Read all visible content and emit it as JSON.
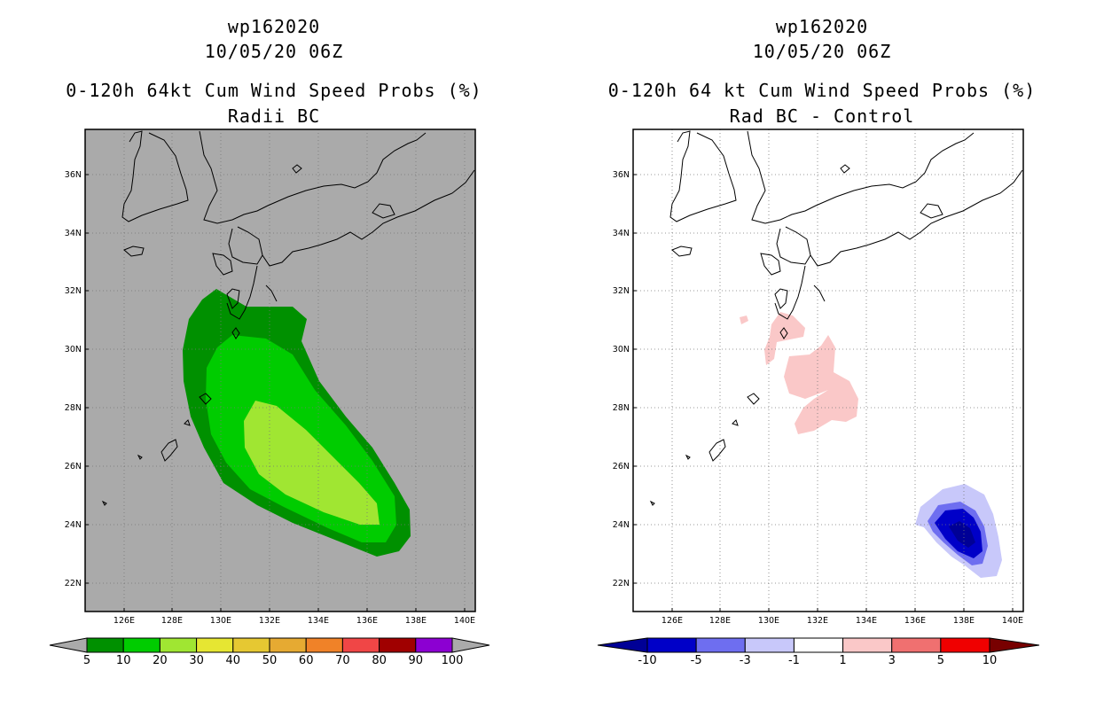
{
  "left": {
    "storm_id": "wp162020",
    "datetime": "10/05/20 06Z",
    "title": "0-120h 64kt Cum Wind Speed Probs (%)",
    "subtitle": "Radii BC",
    "colorbar_labels": [
      "5",
      "10",
      "20",
      "30",
      "40",
      "50",
      "60",
      "70",
      "80",
      "90",
      "100"
    ],
    "colorbar_colors": [
      "#009000",
      "#00cc00",
      "#a0e632",
      "#e6e632",
      "#e6c832",
      "#e6aa32",
      "#f08228",
      "#f04646",
      "#a00000",
      "#8c00d2"
    ]
  },
  "right": {
    "storm_id": "wp162020",
    "datetime": "10/05/20 06Z",
    "title": "0-120h 64 kt Cum Wind Speed Probs (%)",
    "subtitle": "Rad BC - Control",
    "colorbar_labels": [
      "-10",
      "-5",
      "-3",
      "-1",
      "1",
      "3",
      "5",
      "10"
    ],
    "colorbar_colors": [
      "#0000c8",
      "#6e6ef0",
      "#c8c8fa",
      "#ffffff",
      "#fac8c8",
      "#f07070",
      "#f00000"
    ],
    "colorbar_end_colors": [
      "#000096",
      "#780000"
    ]
  },
  "map": {
    "lon_labels": [
      "126E",
      "128E",
      "130E",
      "132E",
      "134E",
      "136E",
      "138E",
      "140E"
    ],
    "lat_labels": [
      "36N",
      "34N",
      "32N",
      "30N",
      "28N",
      "26N",
      "24N",
      "22N"
    ],
    "background_colors": [
      "#aaaaaa",
      "#ffffff"
    ]
  }
}
